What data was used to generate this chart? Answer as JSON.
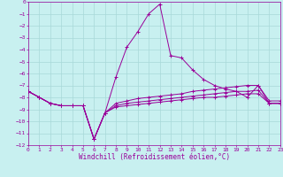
{
  "title": "",
  "xlabel": "Windchill (Refroidissement éolien,°C)",
  "ylabel": "",
  "bg_color": "#c8f0f0",
  "grid_color": "#a8d8d8",
  "line_color": "#990099",
  "x": [
    0,
    1,
    2,
    3,
    4,
    5,
    6,
    7,
    8,
    9,
    10,
    11,
    12,
    13,
    14,
    15,
    16,
    17,
    18,
    19,
    20,
    21,
    22,
    23
  ],
  "line1": [
    -7.5,
    -8.0,
    -8.5,
    -8.7,
    -8.7,
    -8.7,
    -11.5,
    -9.3,
    -6.3,
    -3.8,
    -2.5,
    -1.0,
    -0.2,
    -4.5,
    -4.7,
    -5.7,
    -6.5,
    -7.0,
    -7.3,
    -7.5,
    -8.0,
    -7.0,
    -8.5,
    -8.5
  ],
  "line2": [
    -7.5,
    -8.0,
    -8.5,
    -8.7,
    -8.7,
    -8.7,
    -11.5,
    -9.3,
    -8.5,
    -8.3,
    -8.1,
    -8.0,
    -7.9,
    -7.8,
    -7.7,
    -7.5,
    -7.4,
    -7.3,
    -7.2,
    -7.1,
    -7.0,
    -7.0,
    -8.3,
    -8.3
  ],
  "line3": [
    -7.5,
    -8.0,
    -8.5,
    -8.7,
    -8.7,
    -8.7,
    -11.5,
    -9.3,
    -8.7,
    -8.5,
    -8.4,
    -8.3,
    -8.2,
    -8.1,
    -8.0,
    -7.9,
    -7.8,
    -7.7,
    -7.6,
    -7.5,
    -7.5,
    -7.4,
    -8.5,
    -8.5
  ],
  "line4": [
    -7.5,
    -8.0,
    -8.5,
    -8.7,
    -8.7,
    -8.7,
    -11.5,
    -9.3,
    -8.8,
    -8.7,
    -8.6,
    -8.5,
    -8.4,
    -8.3,
    -8.2,
    -8.1,
    -8.0,
    -8.0,
    -7.9,
    -7.8,
    -7.7,
    -7.7,
    -8.5,
    -8.5
  ],
  "ylim": [
    -12,
    0
  ],
  "xlim": [
    0,
    23
  ],
  "yticks": [
    0,
    -1,
    -2,
    -3,
    -4,
    -5,
    -6,
    -7,
    -8,
    -9,
    -10,
    -11,
    -12
  ],
  "xticks": [
    0,
    1,
    2,
    3,
    4,
    5,
    6,
    7,
    8,
    9,
    10,
    11,
    12,
    13,
    14,
    15,
    16,
    17,
    18,
    19,
    20,
    21,
    22,
    23
  ],
  "tick_fontsize": 4.5,
  "label_fontsize": 5.5
}
